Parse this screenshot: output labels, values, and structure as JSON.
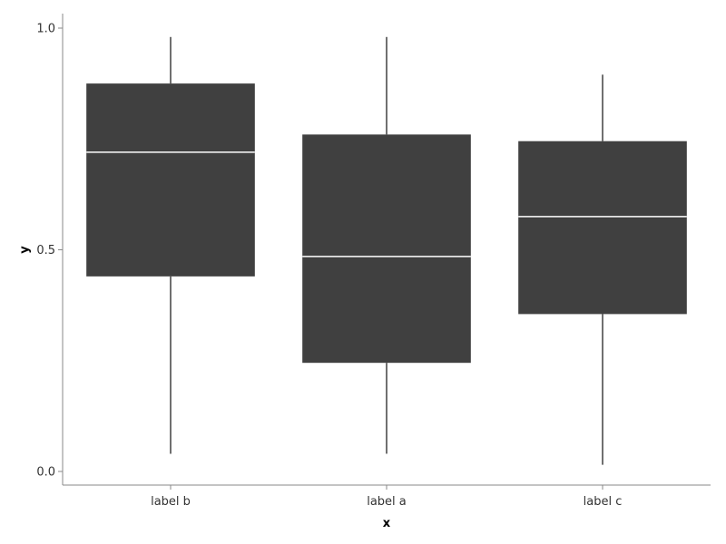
{
  "chart_data": {
    "type": "boxplot",
    "xlabel": "x",
    "ylabel": "y",
    "ylim": [
      -0.03,
      1.03
    ],
    "yticks": [
      0.0,
      0.5,
      1.0
    ],
    "ytick_labels": [
      "0.0",
      "0.5",
      "1.0"
    ],
    "categories": [
      "label b",
      "label a",
      "label c"
    ],
    "boxes": [
      {
        "label": "label b",
        "min": 0.04,
        "q1": 0.44,
        "median": 0.72,
        "q3": 0.875,
        "max": 0.98
      },
      {
        "label": "label a",
        "min": 0.04,
        "q1": 0.245,
        "median": 0.485,
        "q3": 0.76,
        "max": 0.98
      },
      {
        "label": "label c",
        "min": 0.015,
        "q1": 0.355,
        "median": 0.575,
        "q3": 0.745,
        "max": 0.895
      }
    ],
    "box_color": "#404040",
    "median_color": "#ffffff",
    "grid": false,
    "legend": "none"
  }
}
